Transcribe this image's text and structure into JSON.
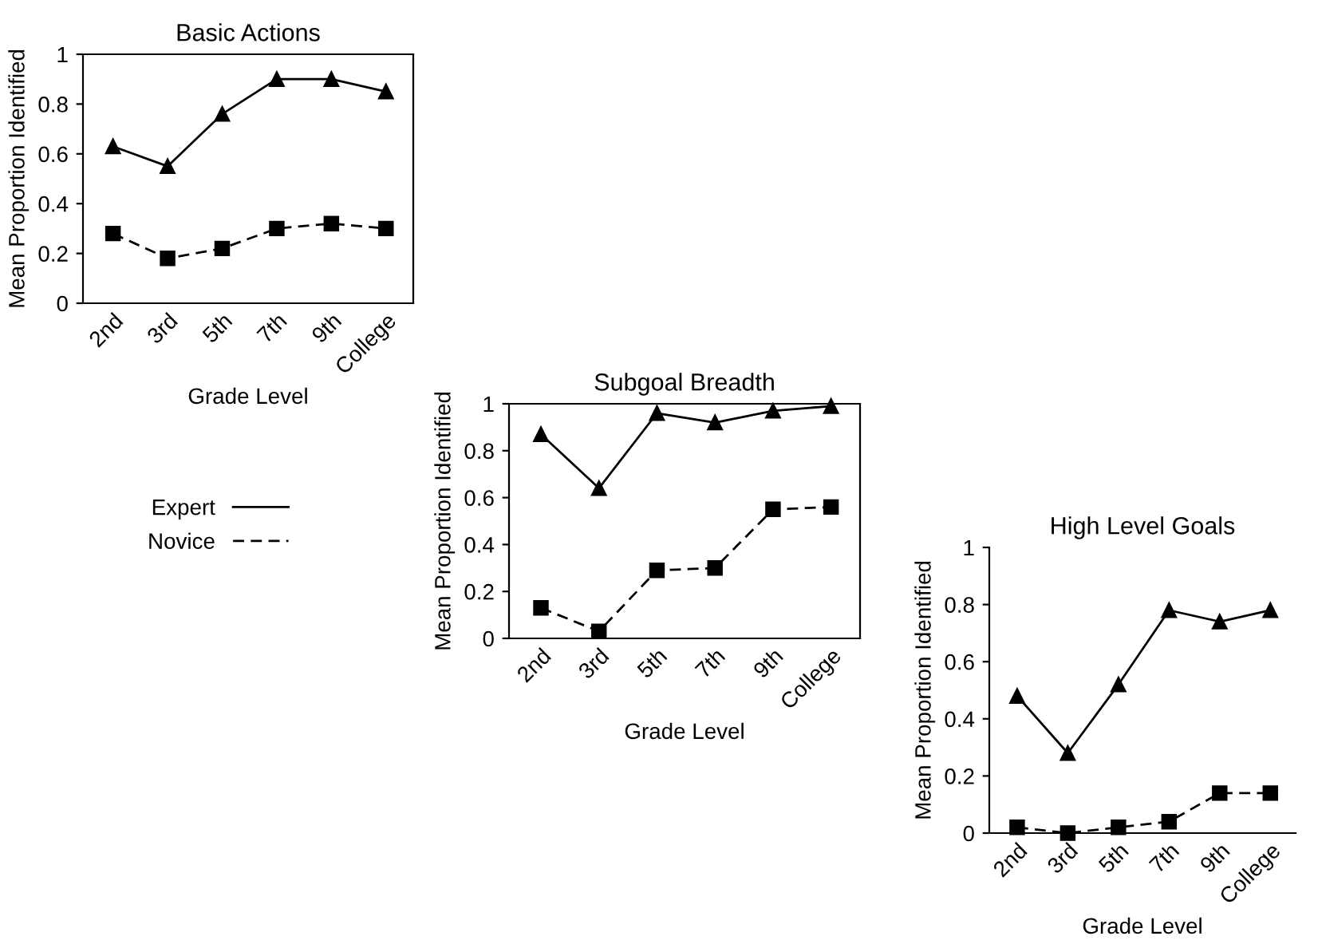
{
  "chart_data": [
    {
      "type": "line",
      "title": "Basic Actions",
      "xlabel": "Grade Level",
      "ylabel": "Mean Proportion Identified",
      "categories": [
        "2nd",
        "3rd",
        "5th",
        "7th",
        "9th",
        "College"
      ],
      "ylim": [
        0,
        1
      ],
      "yticks": [
        0,
        0.2,
        0.4,
        0.6,
        0.8,
        1
      ],
      "legend": "bottom left",
      "grid": false,
      "series": [
        {
          "name": "Expert",
          "color": "#000000",
          "marker": "triangle",
          "line_style": "solid",
          "values": [
            0.63,
            0.55,
            0.76,
            0.9,
            0.9,
            0.85
          ]
        },
        {
          "name": "Novice",
          "color": "#000000",
          "marker": "square",
          "line_style": "dashed",
          "values": [
            0.28,
            0.18,
            0.22,
            0.3,
            0.32,
            0.3
          ]
        }
      ]
    },
    {
      "type": "line",
      "title": "Subgoal Breadth",
      "xlabel": "Grade Level",
      "ylabel": "Mean Proportion Identified",
      "categories": [
        "2nd",
        "3rd",
        "5th",
        "7th",
        "9th",
        "College"
      ],
      "ylim": [
        0,
        1
      ],
      "yticks": [
        0,
        0.2,
        0.4,
        0.6,
        0.8,
        1
      ],
      "grid": false,
      "series": [
        {
          "color": "#000000",
          "marker": "triangle",
          "line_style": "solid",
          "values": [
            0.87,
            0.64,
            0.96,
            0.92,
            0.97,
            0.99
          ]
        },
        {
          "color": "#000000",
          "marker": "square",
          "line_style": "dashed",
          "values": [
            0.13,
            0.03,
            0.29,
            0.3,
            0.55,
            0.56
          ]
        }
      ]
    },
    {
      "type": "line",
      "title": "High Level Goals",
      "xlabel": "Grade Level",
      "ylabel": "Mean Proportion Identified",
      "categories": [
        "2nd",
        "3rd",
        "5th",
        "7th",
        "9th",
        "College"
      ],
      "ylim": [
        0,
        1
      ],
      "yticks": [
        0,
        0.2,
        0.4,
        0.6,
        0.8,
        1
      ],
      "grid": false,
      "series": [
        {
          "color": "#000000",
          "marker": "triangle",
          "line_style": "solid",
          "values": [
            0.48,
            0.28,
            0.52,
            0.78,
            0.74,
            0.78
          ]
        },
        {
          "color": "#000000",
          "marker": "square",
          "line_style": "dashed",
          "values": [
            0.02,
            0,
            0.02,
            0.04,
            0.14,
            0.14
          ]
        }
      ]
    }
  ]
}
